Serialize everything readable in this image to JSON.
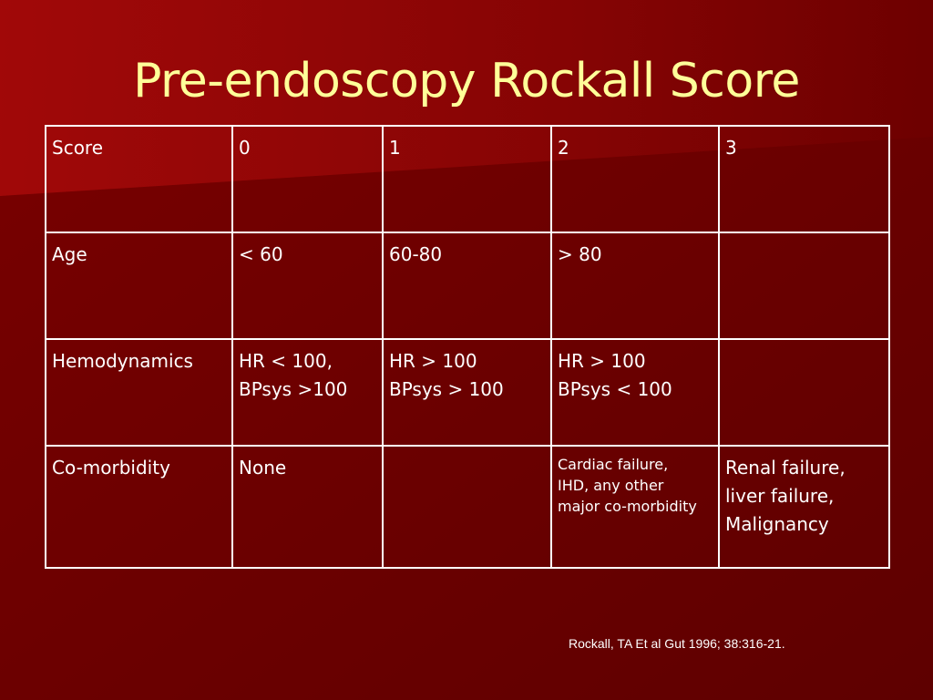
{
  "slide": {
    "title": "Pre-endoscopy Rockall Score",
    "citation": "Rockall, TA Et al Gut 1996; 38:316-21.",
    "colors": {
      "background": "#6a0000",
      "title": "#ffff99",
      "text": "#ffffff",
      "border": "#ffffff"
    }
  },
  "table": {
    "rows": [
      {
        "label": "Score",
        "cells": [
          "0",
          "1",
          "2",
          "3"
        ]
      },
      {
        "label": "Age",
        "cells": [
          "< 60",
          "60-80",
          "> 80",
          ""
        ]
      },
      {
        "label": "Hemodynamics",
        "cells": [
          "HR < 100,\nBPsys >100",
          "HR > 100\nBPsys > 100",
          "HR > 100\nBPsys < 100",
          ""
        ]
      },
      {
        "label": "Co-morbidity",
        "cells": [
          "None",
          "",
          "Cardiac failure,\nIHD, any other\nmajor co-morbidity",
          "Renal failure,\nliver failure,\nMalignancy"
        ]
      }
    ]
  }
}
